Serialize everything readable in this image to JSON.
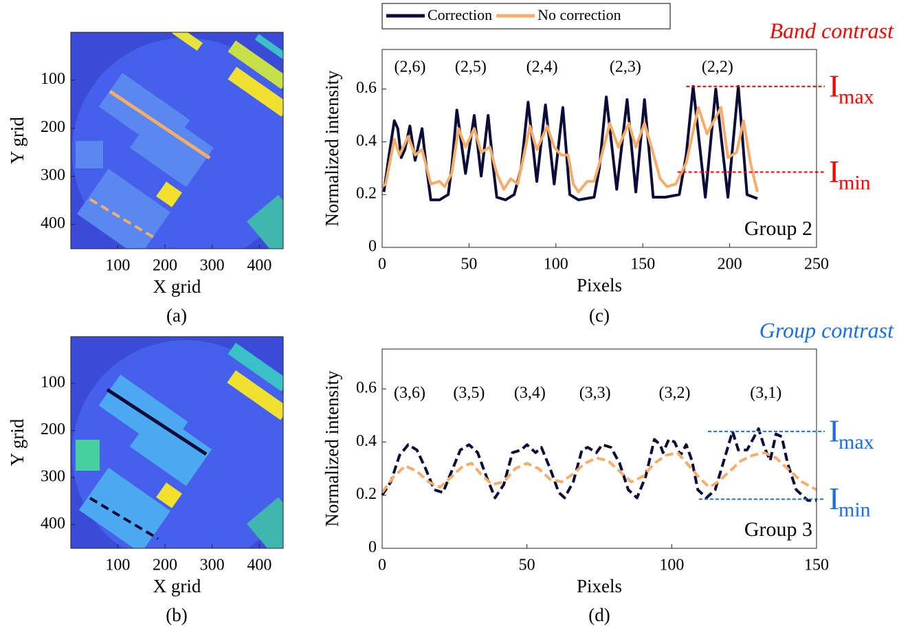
{
  "chart_data": [
    {
      "type": "image",
      "caption": "(a)",
      "xlabel": "X grid",
      "ylabel": "Y grid",
      "xlim": [
        0.5,
        450.5
      ],
      "ylim": [
        0.5,
        450.5
      ],
      "xticks": [
        100,
        200,
        300,
        400
      ],
      "yticks": [
        100,
        200,
        300,
        400
      ],
      "y_reversed": true
    },
    {
      "type": "line",
      "caption": "(c)",
      "xlabel": "Pixels",
      "ylabel": "Normalized intensity",
      "title": "Band contrast",
      "title_color": "#ff0000",
      "note": "Group 2",
      "legend": "outside-top",
      "xlim": [
        0,
        250
      ],
      "ylim": [
        0,
        0.75
      ],
      "xticks": [
        0,
        50,
        100,
        150,
        200,
        250
      ],
      "yticks": [
        0,
        0.2,
        0.4,
        0.6
      ],
      "group_label_y": 0.68,
      "group_labels": [
        {
          "text": "(2,6)",
          "x": 16
        },
        {
          "text": "(2,5)",
          "x": 51
        },
        {
          "text": "(2,4)",
          "x": 92
        },
        {
          "text": "(2,3)",
          "x": 140
        },
        {
          "text": "(2,2)",
          "x": 193
        }
      ],
      "hlines": [
        {
          "value": 0.61,
          "x0": 175,
          "label": "I",
          "sub": "max",
          "color": "#ff0000"
        },
        {
          "value": 0.285,
          "x0": 170,
          "label": "I",
          "sub": "min",
          "color": "#ff0000"
        }
      ],
      "series": [
        {
          "name": "Correction",
          "color": "#0b0c3a",
          "dash": false,
          "x": [
            1,
            4,
            7,
            9,
            11,
            13,
            16,
            19,
            21,
            23,
            25,
            28,
            33,
            38,
            40,
            43,
            48,
            53,
            57,
            61,
            64,
            66,
            71,
            76,
            80,
            84,
            89,
            94,
            99,
            104,
            108,
            113,
            122,
            125,
            129,
            135,
            141,
            146,
            151,
            156,
            163,
            171,
            175,
            179,
            186,
            192,
            199,
            205,
            210,
            216
          ],
          "values": [
            0.21,
            0.35,
            0.48,
            0.45,
            0.34,
            0.37,
            0.46,
            0.33,
            0.39,
            0.45,
            0.33,
            0.18,
            0.18,
            0.2,
            0.3,
            0.52,
            0.28,
            0.5,
            0.27,
            0.5,
            0.3,
            0.19,
            0.18,
            0.2,
            0.3,
            0.55,
            0.25,
            0.54,
            0.24,
            0.53,
            0.2,
            0.18,
            0.19,
            0.3,
            0.57,
            0.22,
            0.56,
            0.21,
            0.56,
            0.19,
            0.19,
            0.2,
            0.35,
            0.61,
            0.19,
            0.6,
            0.19,
            0.61,
            0.2,
            0.185
          ]
        },
        {
          "name": "No correction",
          "color": "#f7ad6a",
          "dash": false,
          "x": [
            0,
            2,
            7,
            10,
            15,
            19,
            23,
            28,
            33,
            36,
            40,
            44,
            48,
            53,
            57,
            62,
            66,
            70,
            74,
            78,
            81,
            85,
            89,
            95,
            99,
            103,
            107,
            110,
            113,
            118,
            122,
            126,
            131,
            136,
            142,
            146,
            151,
            155,
            160,
            164,
            169,
            175,
            182,
            187,
            195,
            199,
            204,
            208,
            212,
            216
          ],
          "values": [
            0.23,
            0.24,
            0.41,
            0.35,
            0.42,
            0.35,
            0.37,
            0.24,
            0.25,
            0.23,
            0.28,
            0.45,
            0.38,
            0.45,
            0.36,
            0.38,
            0.28,
            0.22,
            0.26,
            0.24,
            0.33,
            0.46,
            0.37,
            0.46,
            0.38,
            0.35,
            0.35,
            0.24,
            0.21,
            0.25,
            0.25,
            0.34,
            0.47,
            0.38,
            0.47,
            0.38,
            0.47,
            0.38,
            0.26,
            0.23,
            0.24,
            0.32,
            0.53,
            0.43,
            0.53,
            0.34,
            0.36,
            0.48,
            0.32,
            0.21
          ]
        }
      ]
    },
    {
      "type": "image",
      "caption": "(b)",
      "xlabel": "X grid",
      "ylabel": "Y grid",
      "xlim": [
        0.5,
        450.5
      ],
      "ylim": [
        0.5,
        450.5
      ],
      "xticks": [
        100,
        200,
        300,
        400
      ],
      "yticks": [
        100,
        200,
        300,
        400
      ],
      "y_reversed": true
    },
    {
      "type": "line",
      "caption": "(d)",
      "xlabel": "Pixels",
      "ylabel": "Normalized intensity",
      "title": "Group contrast",
      "title_color": "#1a6ee8",
      "note": "Group 3",
      "xlim": [
        0,
        150
      ],
      "ylim": [
        0,
        0.75
      ],
      "xticks": [
        0,
        50,
        100,
        150
      ],
      "yticks": [
        0,
        0.2,
        0.4,
        0.6
      ],
      "group_label_y": 0.58,
      "group_labels": [
        {
          "text": "(3,6)",
          "x": 9.5
        },
        {
          "text": "(3,5)",
          "x": 30
        },
        {
          "text": "(3,4)",
          "x": 51
        },
        {
          "text": "(3,3)",
          "x": 73.5
        },
        {
          "text": "(3,2)",
          "x": 101
        },
        {
          "text": "(3,1)",
          "x": 132.5
        }
      ],
      "hlines": [
        {
          "value": 0.44,
          "x0": 112.5,
          "label": "I",
          "sub": "max",
          "color": "#1a6ee8"
        },
        {
          "value": 0.185,
          "x0": 109.4,
          "label": "I",
          "sub": "min",
          "color": "#1a6ee8"
        }
      ],
      "series": [
        {
          "name": "Correction",
          "color": "#0b0c3a",
          "dash": true,
          "x": [
            0,
            3,
            6,
            9,
            12,
            15,
            18,
            21,
            24,
            27,
            30,
            33,
            36,
            39,
            42,
            45,
            48,
            50,
            53,
            55,
            58,
            61,
            63,
            66,
            69,
            71,
            74,
            76,
            79,
            82,
            85,
            88,
            91,
            94,
            96,
            97,
            99,
            101,
            103,
            105,
            107,
            109,
            112,
            115,
            118,
            121,
            123,
            126,
            128,
            130,
            132,
            134,
            136,
            138,
            140,
            143,
            147,
            150
          ],
          "values": [
            0.2,
            0.25,
            0.35,
            0.39,
            0.37,
            0.3,
            0.22,
            0.21,
            0.29,
            0.37,
            0.39,
            0.36,
            0.27,
            0.19,
            0.24,
            0.36,
            0.37,
            0.39,
            0.36,
            0.38,
            0.3,
            0.21,
            0.19,
            0.25,
            0.37,
            0.38,
            0.36,
            0.39,
            0.38,
            0.32,
            0.22,
            0.19,
            0.27,
            0.41,
            0.39,
            0.36,
            0.41,
            0.4,
            0.35,
            0.39,
            0.33,
            0.22,
            0.19,
            0.22,
            0.33,
            0.44,
            0.37,
            0.37,
            0.41,
            0.45,
            0.38,
            0.33,
            0.43,
            0.42,
            0.32,
            0.22,
            0.18,
            0.18
          ]
        },
        {
          "name": "No correction",
          "color": "#f7ad6a",
          "dash": true,
          "x": [
            0,
            4,
            8,
            12,
            16,
            20,
            24,
            28,
            31,
            34,
            38,
            42,
            46,
            50,
            54,
            58,
            62,
            66,
            70,
            74,
            78,
            82,
            86,
            90,
            94,
            98,
            102,
            106,
            110,
            113,
            116,
            120,
            124,
            128,
            132,
            136,
            140,
            145,
            150
          ],
          "values": [
            0.21,
            0.27,
            0.31,
            0.29,
            0.25,
            0.23,
            0.27,
            0.31,
            0.32,
            0.28,
            0.24,
            0.25,
            0.3,
            0.32,
            0.3,
            0.26,
            0.25,
            0.28,
            0.32,
            0.34,
            0.33,
            0.29,
            0.25,
            0.27,
            0.32,
            0.35,
            0.36,
            0.31,
            0.26,
            0.23,
            0.25,
            0.29,
            0.33,
            0.35,
            0.36,
            0.34,
            0.3,
            0.25,
            0.22
          ]
        }
      ]
    }
  ]
}
